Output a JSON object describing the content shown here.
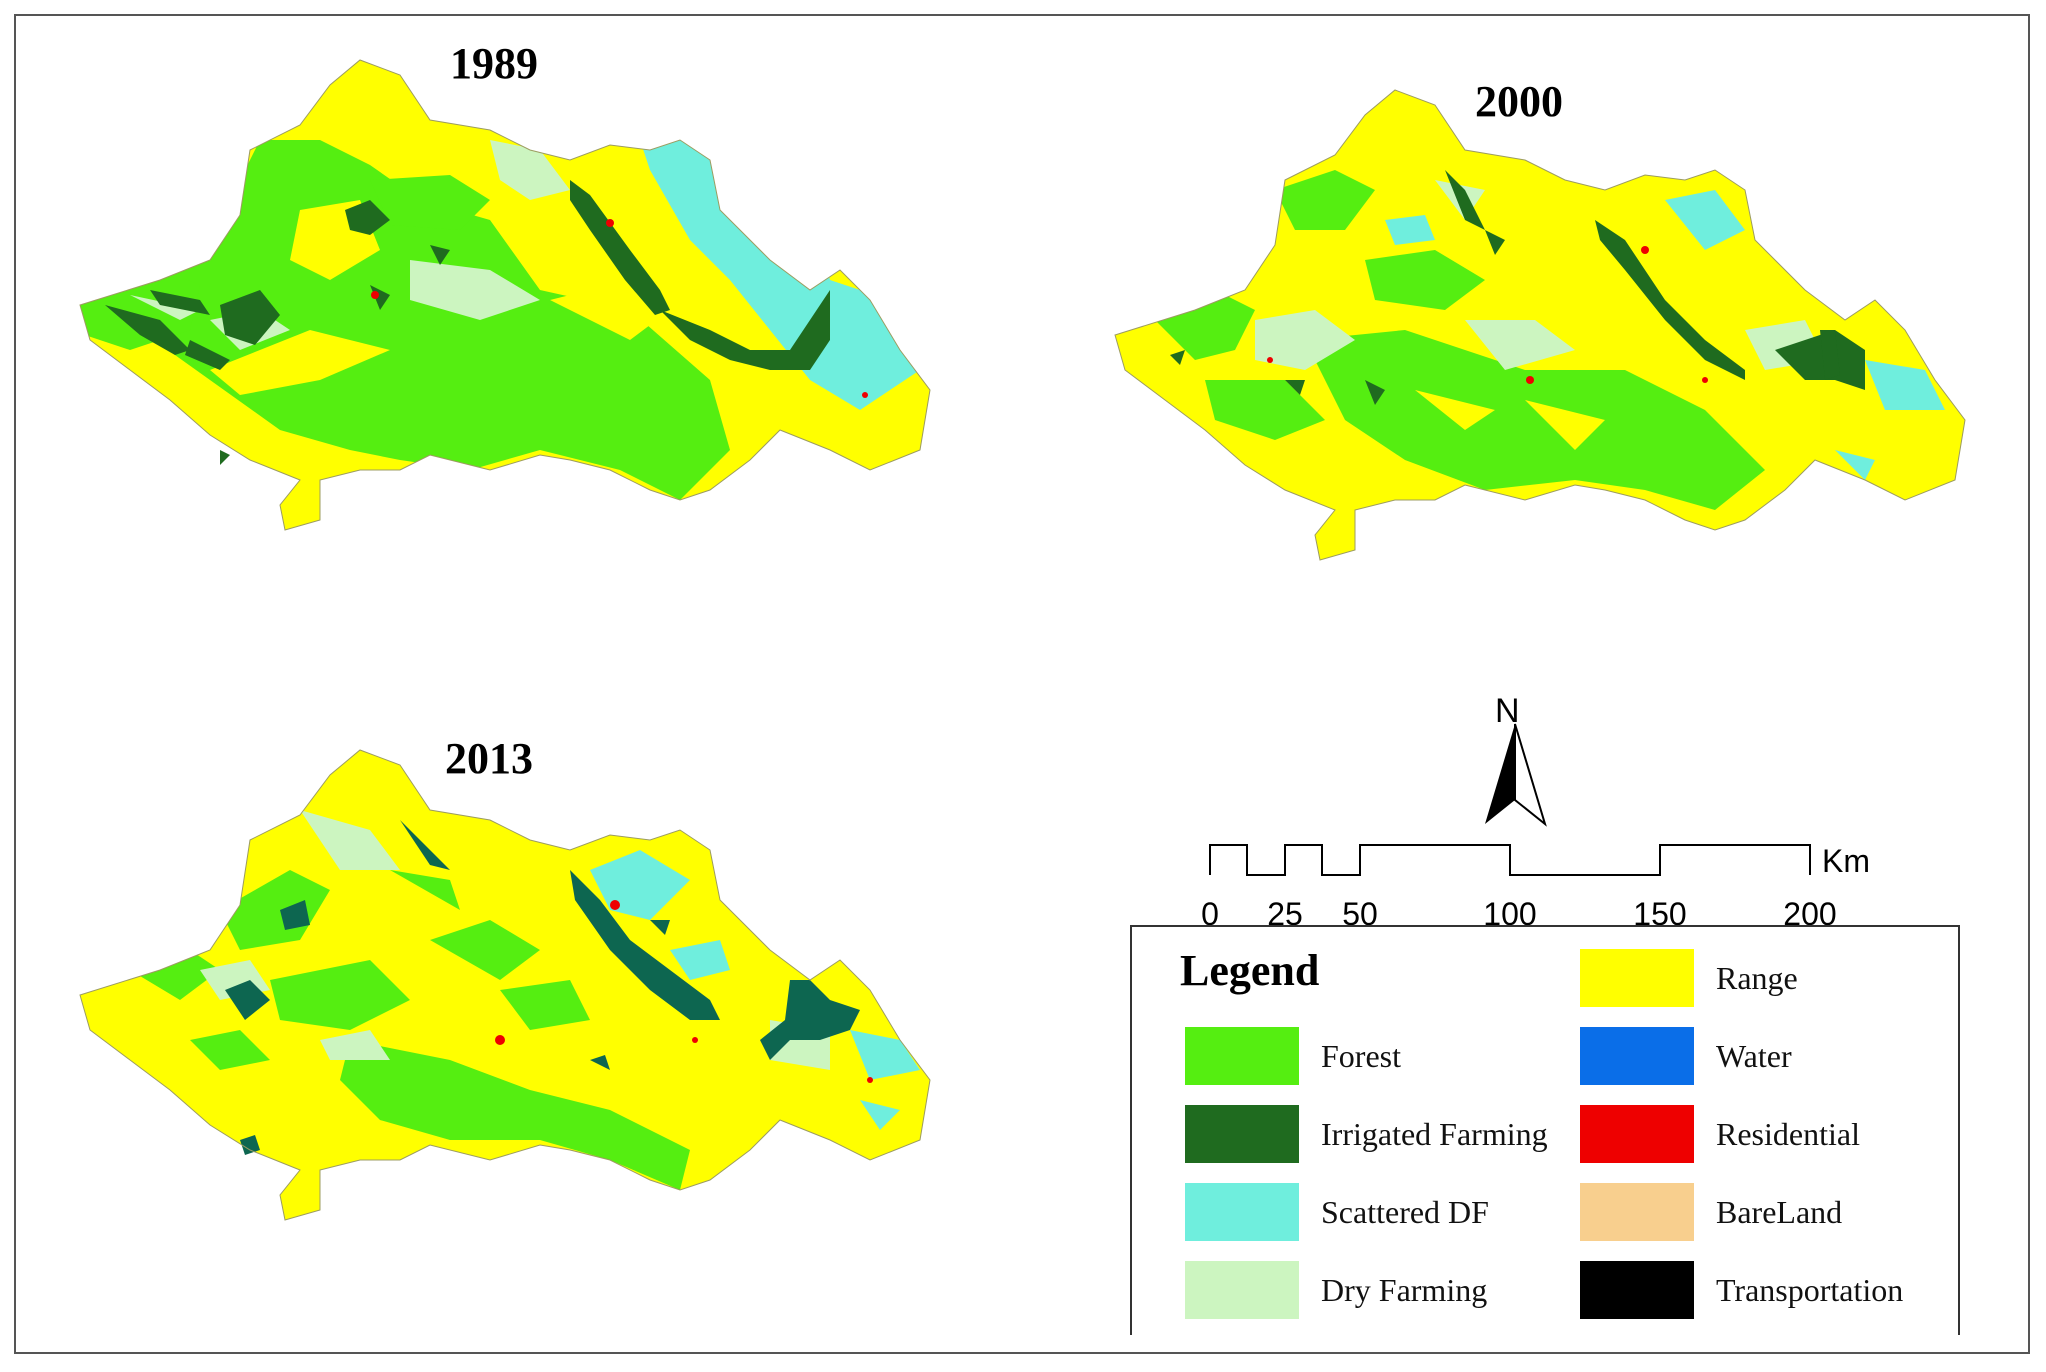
{
  "maps": [
    {
      "id": "1989",
      "title": "1989"
    },
    {
      "id": "2000",
      "title": "2000"
    },
    {
      "id": "2013",
      "title": "2013"
    }
  ],
  "north": {
    "label": "N"
  },
  "scale": {
    "unit": "Km",
    "ticks": [
      "0",
      "25",
      "50",
      "100",
      "150",
      "200"
    ]
  },
  "legend": {
    "title": "Legend",
    "items": [
      {
        "label": "Forest",
        "color": "#55ee11"
      },
      {
        "label": "Irrigated Farming",
        "color": "#1f6b1f"
      },
      {
        "label": "Scattered DF",
        "color": "#6feedd"
      },
      {
        "label": "Dry Farming",
        "color": "#ccf5c0"
      },
      {
        "label": "Range",
        "color": "#ffff00"
      },
      {
        "label": "Water",
        "color": "#0a6ee8"
      },
      {
        "label": "Residential",
        "color": "#ee0000"
      },
      {
        "label": "BareLand",
        "color": "#f8cf8e"
      },
      {
        "label": "Transportation",
        "color": "#000000"
      }
    ]
  },
  "colors": {
    "forest": "#55ee11",
    "range": "#ffff00",
    "irrigated": "#1f6b1f",
    "irrigated_2013": "#0d6650",
    "scattered": "#6feedd",
    "dry": "#ccf5c0",
    "residential": "#ee0000"
  }
}
